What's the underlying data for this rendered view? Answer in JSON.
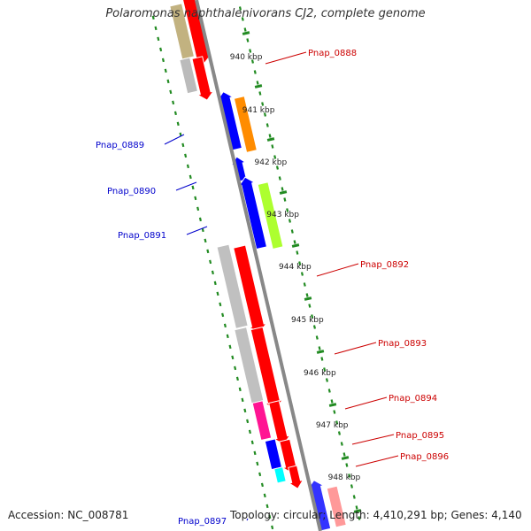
{
  "title": "Polaromonas naphthalenivorans CJ2, complete genome",
  "accession": "Accession: NC_008781",
  "topology": "Topology: circular; Length: 4,410,291 bp; Genes: 4,140",
  "colors": {
    "backbone": "#888888",
    "tick": "#228b22",
    "label_forward": "#cc0000",
    "label_reverse": "#0000cc"
  },
  "kbp_labels": [
    "940 kbp",
    "941 kbp",
    "942 kbp",
    "943 kbp",
    "944 kbp",
    "945 kbp",
    "946 kbp",
    "947 kbp",
    "948 kbp"
  ],
  "gene_labels": [
    {
      "text": "Pnap_0888",
      "strand": "forward"
    },
    {
      "text": "Pnap_0889",
      "strand": "reverse"
    },
    {
      "text": "Pnap_0890",
      "strand": "reverse"
    },
    {
      "text": "Pnap_0891",
      "strand": "reverse"
    },
    {
      "text": "Pnap_0892",
      "strand": "forward"
    },
    {
      "text": "Pnap_0893",
      "strand": "forward"
    },
    {
      "text": "Pnap_0894",
      "strand": "forward"
    },
    {
      "text": "Pnap_0895",
      "strand": "forward"
    },
    {
      "text": "Pnap_0896",
      "strand": "forward"
    },
    {
      "text": "Pnap_0897",
      "strand": "reverse"
    }
  ]
}
